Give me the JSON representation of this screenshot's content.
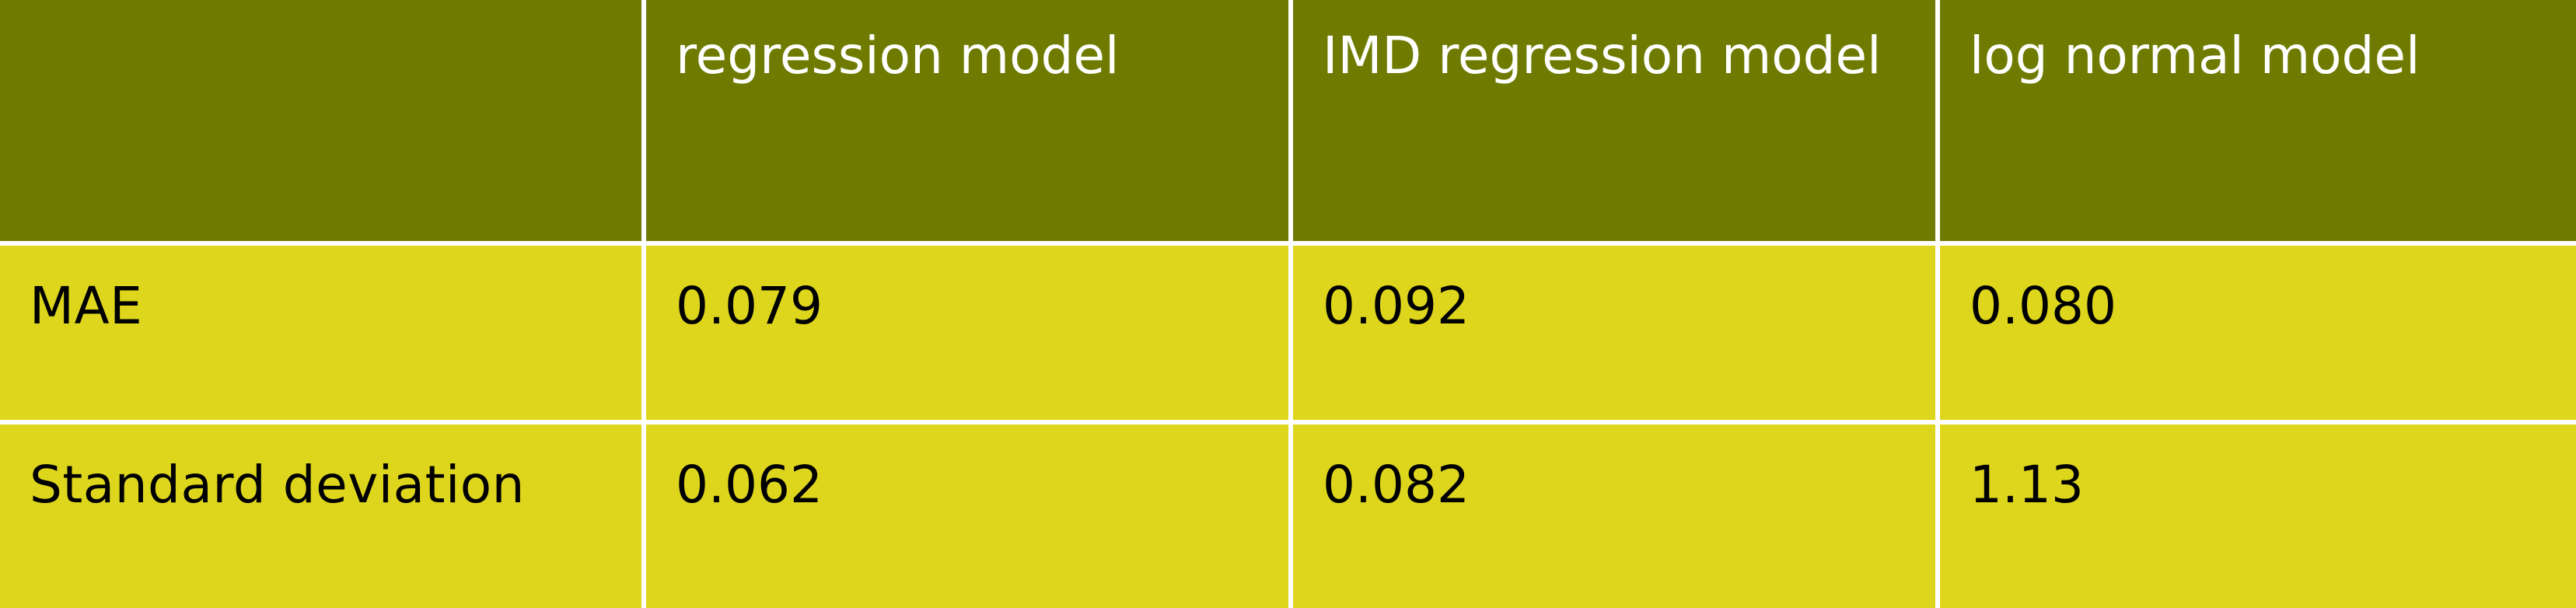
{
  "table": {
    "headers": [
      "",
      "regression model",
      "IMD regression model",
      "log normal model"
    ],
    "rows": [
      {
        "label": "MAE",
        "values": [
          "0.079",
          "0.092",
          "0.080"
        ]
      },
      {
        "label": "Standard deviation",
        "values": [
          "0.062",
          "0.082",
          "1.13"
        ]
      }
    ]
  },
  "colors": {
    "header_bg": "#6f7b00",
    "body_bg": "#ded61c",
    "header_text": "#ffffff",
    "body_text": "#000000",
    "border": "#ffffff"
  }
}
